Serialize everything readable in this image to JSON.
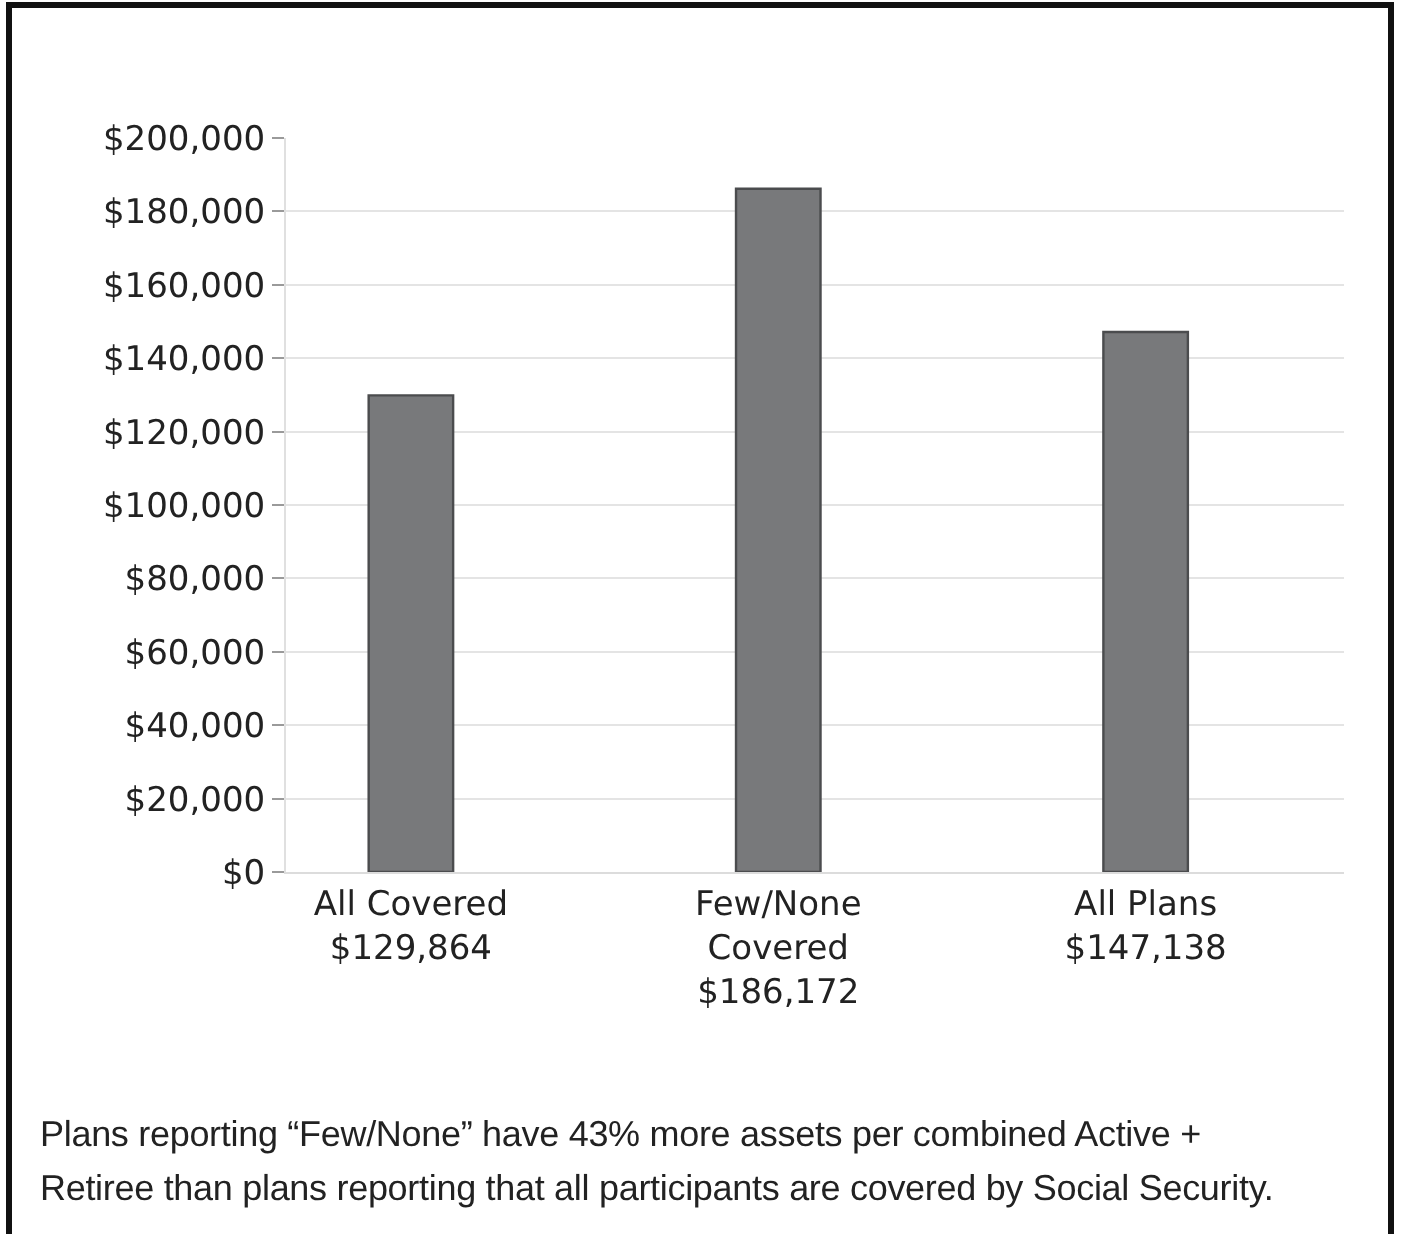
{
  "chart_data": {
    "type": "bar",
    "categories": [
      "All Covered",
      "Few/None Covered",
      "All Plans"
    ],
    "values": [
      129864,
      186172,
      147138
    ],
    "value_labels": [
      "$129,864",
      "$186,172",
      "$147,138"
    ],
    "color": "#78797b",
    "ylim": [
      0,
      200000
    ],
    "yticks": [
      {
        "value": 0,
        "label": "$0"
      },
      {
        "value": 20000,
        "label": "$20,000"
      },
      {
        "value": 40000,
        "label": "$40,000"
      },
      {
        "value": 60000,
        "label": "$60,000"
      },
      {
        "value": 80000,
        "label": "$80,000"
      },
      {
        "value": 100000,
        "label": "$100,000"
      },
      {
        "value": 120000,
        "label": "$120,000"
      },
      {
        "value": 140000,
        "label": "$140,000"
      },
      {
        "value": 160000,
        "label": "$160,000"
      },
      {
        "value": 180000,
        "label": "$180,000"
      },
      {
        "value": 200000,
        "label": "$200,000"
      }
    ],
    "grid": "y",
    "annotations": [
      "Plans reporting “Few/None” have 43% more assets per combined Active + Retiree than plans reporting that all participants are covered by Social Security."
    ]
  }
}
